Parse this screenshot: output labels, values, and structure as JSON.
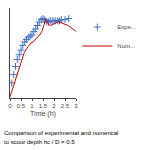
{
  "chart_data": {
    "type": "scatter",
    "xlabel": "Time (h)",
    "xlim": [
      0,
      3
    ],
    "ylim": [
      0.05,
      0.82
    ],
    "xticks": [
      0,
      0.5,
      1,
      1.5,
      2,
      2.5,
      3
    ],
    "yticks": [],
    "tick_labels": "x",
    "grid": false,
    "legend": "right",
    "series": [
      {
        "name": "Expe...",
        "type": "scatter",
        "marker": "plus",
        "color": "#4472C4",
        "x": [
          0.08,
          0.17,
          0.25,
          0.33,
          0.42,
          0.5,
          0.58,
          0.67,
          0.75,
          0.83,
          0.92,
          1.0,
          1.08,
          1.17,
          1.25,
          1.33,
          1.42,
          1.5,
          1.58,
          1.67,
          1.75,
          1.83,
          1.92,
          2.0,
          2.08,
          2.17,
          2.25,
          2.33,
          2.5,
          2.67
        ],
        "values": [
          0.18,
          0.25,
          0.32,
          0.38,
          0.42,
          0.46,
          0.5,
          0.53,
          0.55,
          0.57,
          0.58,
          0.59,
          0.62,
          0.64,
          0.67,
          0.7,
          0.72,
          0.73,
          0.72,
          0.7,
          0.7,
          0.71,
          0.71,
          0.71,
          0.71,
          0.71,
          0.71,
          0.72,
          0.72,
          0.73
        ]
      },
      {
        "name": "Num...",
        "type": "line",
        "line_style": "solid",
        "color": "#CC0000",
        "x": [
          0.0,
          0.05,
          0.15,
          0.25,
          0.35,
          0.45,
          0.55,
          0.65,
          0.75,
          0.85,
          0.95,
          1.05,
          1.15,
          1.25,
          1.35,
          1.45,
          1.55,
          1.62,
          1.68,
          1.75,
          1.85,
          1.95,
          2.05,
          2.15,
          2.25,
          2.35,
          2.5,
          2.65,
          2.8,
          2.95,
          3.0
        ],
        "values": [
          0.06,
          0.09,
          0.14,
          0.2,
          0.27,
          0.33,
          0.39,
          0.44,
          0.47,
          0.5,
          0.52,
          0.53,
          0.55,
          0.57,
          0.59,
          0.62,
          0.67,
          0.72,
          0.71,
          0.68,
          0.67,
          0.68,
          0.69,
          0.7,
          0.7,
          0.69,
          0.68,
          0.67,
          0.65,
          0.63,
          0.62
        ]
      }
    ],
    "annotations": [
      "Comparison of experimental and numerical",
      "to scour depth hc / D = 0.5"
    ]
  }
}
